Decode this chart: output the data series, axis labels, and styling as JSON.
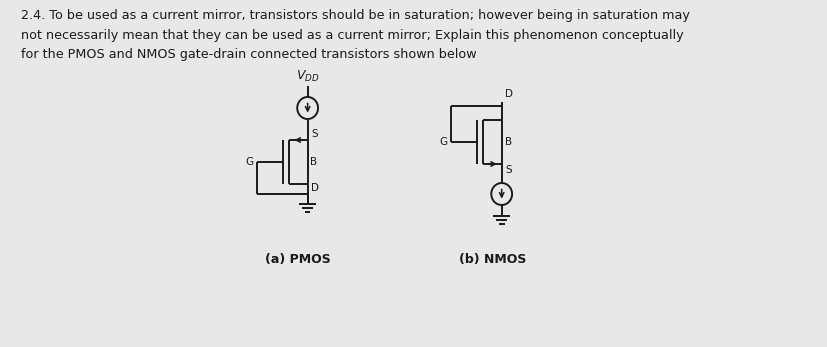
{
  "title_text": "2.4. To be used as a current mirror, transistors should be in saturation; however being in saturation may\nnot necessarily mean that they can be used as a current mirror; Explain this phenomenon conceptually\nfor the PMOS and NMOS gate-drain connected transistors shown below",
  "label_a": "(a) PMOS",
  "label_b": "(b) NMOS",
  "bg_color": "#e8e8e8",
  "line_color": "#1a1a1a",
  "text_color": "#1a1a1a",
  "font_size_title": 9.2,
  "font_size_label": 9,
  "font_size_node": 7.5
}
